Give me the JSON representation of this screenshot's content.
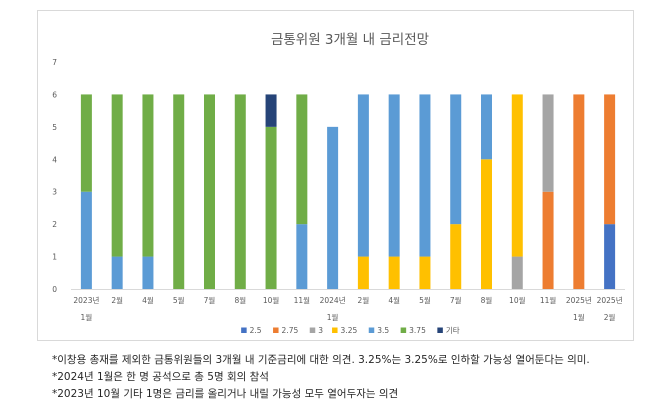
{
  "chart_data": {
    "type": "bar",
    "stacked": true,
    "title": "금통위원 3개월 내 금리전망",
    "xlabel": "",
    "ylabel": "",
    "ylim": [
      0,
      7
    ],
    "yticks": [
      0,
      1,
      2,
      3,
      4,
      5,
      6,
      7
    ],
    "grid": false,
    "legend_position": "bottom",
    "categories": [
      [
        "2023년",
        "1월"
      ],
      [
        "2월",
        ""
      ],
      [
        "4월",
        ""
      ],
      [
        "5월",
        ""
      ],
      [
        "7월",
        ""
      ],
      [
        "8월",
        ""
      ],
      [
        "10월",
        ""
      ],
      [
        "11월",
        ""
      ],
      [
        "2024년",
        "1월"
      ],
      [
        "2월",
        ""
      ],
      [
        "4월",
        ""
      ],
      [
        "5월",
        ""
      ],
      [
        "7월",
        ""
      ],
      [
        "8월",
        ""
      ],
      [
        "10월",
        ""
      ],
      [
        "11월",
        ""
      ],
      [
        "2025년",
        "1월"
      ],
      [
        "2025년",
        "2월"
      ]
    ],
    "series": [
      {
        "name": "2.5",
        "color": "#4472c4",
        "values": [
          0,
          0,
          0,
          0,
          0,
          0,
          0,
          0,
          0,
          0,
          0,
          0,
          0,
          0,
          0,
          0,
          0,
          2
        ]
      },
      {
        "name": "2.75",
        "color": "#ed7d31",
        "values": [
          0,
          0,
          0,
          0,
          0,
          0,
          0,
          0,
          0,
          0,
          0,
          0,
          0,
          0,
          0,
          3,
          6,
          4
        ]
      },
      {
        "name": "3",
        "color": "#a5a5a5",
        "values": [
          0,
          0,
          0,
          0,
          0,
          0,
          0,
          0,
          0,
          0,
          0,
          0,
          0,
          0,
          1,
          3,
          0,
          0
        ]
      },
      {
        "name": "3.25",
        "color": "#ffc000",
        "values": [
          0,
          0,
          0,
          0,
          0,
          0,
          0,
          0,
          0,
          1,
          1,
          1,
          2,
          4,
          5,
          0,
          0,
          0
        ]
      },
      {
        "name": "3.5",
        "color": "#5b9bd5",
        "values": [
          3,
          1,
          1,
          0,
          0,
          0,
          0,
          2,
          5,
          5,
          5,
          5,
          4,
          2,
          0,
          0,
          0,
          0
        ]
      },
      {
        "name": "3.75",
        "color": "#70ad47",
        "values": [
          3,
          5,
          5,
          6,
          6,
          6,
          5,
          4,
          0,
          0,
          0,
          0,
          0,
          0,
          0,
          0,
          0,
          0
        ]
      },
      {
        "name": "기타",
        "color": "#264478",
        "values": [
          0,
          0,
          0,
          0,
          0,
          0,
          1,
          0,
          0,
          0,
          0,
          0,
          0,
          0,
          0,
          0,
          0,
          0
        ]
      }
    ]
  },
  "notes": [
    "*이창용 총재를 제외한 금통위원들의 3개월 내 기준금리에 대한 의견. 3.25%는 3.25%로 인하할 가능성 열어둔다는 의미.",
    "*2024년 1월은 한 명 공석으로 총 5명 회의 참석",
    "*2023년 10월 기타 1명은 금리를 올리거나 내릴 가능성 모두 열어두자는 의견"
  ]
}
